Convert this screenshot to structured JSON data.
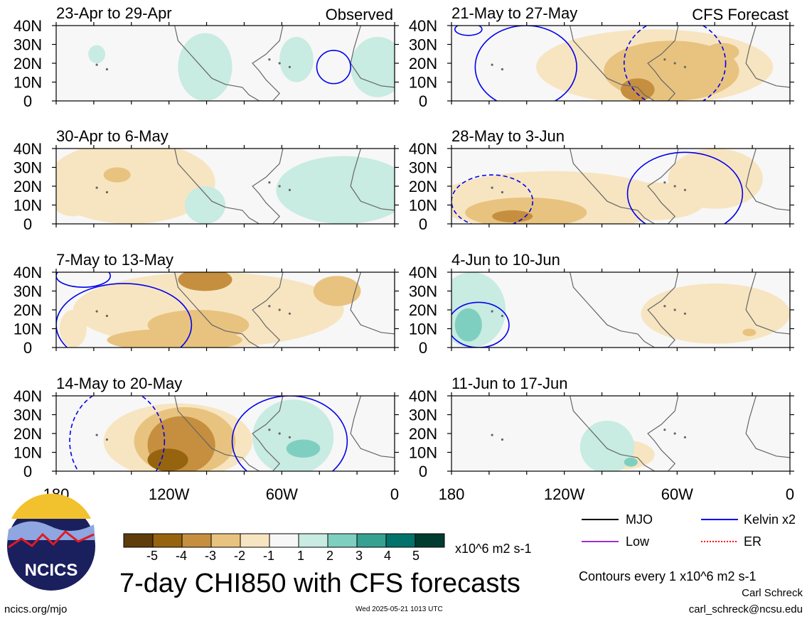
{
  "colors": {
    "dry3": "#96640e",
    "dry2": "#c58f3f",
    "dry1": "#e8c37f",
    "dry0": "#f7e5c1",
    "neutral": "#f7f7f7",
    "wet1": "#c8ebe2",
    "wet2": "#7fcfc0",
    "mjo": "#000000",
    "kelvin": "#0000ee",
    "low": "#9932cc",
    "er": "#ff0000",
    "land": "#666666"
  },
  "map_data": {
    "lon_range": [
      -180,
      0
    ],
    "lat_range": [
      0,
      40
    ],
    "x_ticks": [
      "180",
      "120W",
      "60W",
      "0"
    ],
    "y_ticks": [
      "40N",
      "30N",
      "20N",
      "10N",
      "0"
    ],
    "panels": [
      {
        "id": "p1",
        "col": 0,
        "row": 0,
        "title": "23-Apr to 29-Apr",
        "tag": "Observed"
      },
      {
        "id": "p2",
        "col": 0,
        "row": 1,
        "title": "30-Apr to 6-May",
        "tag": ""
      },
      {
        "id": "p3",
        "col": 0,
        "row": 2,
        "title": "7-May to 13-May",
        "tag": ""
      },
      {
        "id": "p4",
        "col": 0,
        "row": 3,
        "title": "14-May to 20-May",
        "tag": ""
      },
      {
        "id": "p5",
        "col": 1,
        "row": 0,
        "title": "21-May to 27-May",
        "tag": "CFS Forecast"
      },
      {
        "id": "p6",
        "col": 1,
        "row": 1,
        "title": "28-May to 3-Jun",
        "tag": ""
      },
      {
        "id": "p7",
        "col": 1,
        "row": 2,
        "title": "4-Jun to 10-Jun",
        "tag": ""
      },
      {
        "id": "p8",
        "col": 1,
        "row": 3,
        "title": "11-Jun to 17-Jun",
        "tag": ""
      }
    ]
  },
  "colorbar": {
    "labels": [
      "-5",
      "-4",
      "-3",
      "-2",
      "-1",
      "1",
      "2",
      "3",
      "4",
      "5"
    ],
    "colors": [
      "#5e3c0b",
      "#96640e",
      "#c58f3f",
      "#e8c37f",
      "#f7e5c1",
      "#f7f7f7",
      "#c8ebe2",
      "#7fcfc0",
      "#35a191",
      "#01736a",
      "#003c30"
    ],
    "units": "x10^6 m2 s-1"
  },
  "legend": {
    "items": [
      {
        "label": "MJO",
        "color": "#000000",
        "style": "solid"
      },
      {
        "label": "Kelvin x2",
        "color": "#0000ee",
        "style": "solid"
      },
      {
        "label": "Low",
        "color": "#9932cc",
        "style": "solid"
      },
      {
        "label": "ER",
        "color": "#ff0000",
        "style": "dotted"
      }
    ],
    "contours_note": "Contours every 1 x10^6 m2 s-1"
  },
  "logo": {
    "text": "NCICS"
  },
  "main_title": "7-day CHI850 with CFS forecasts",
  "footer": {
    "url": "ncics.org/mjo",
    "timestamp": "Wed 2025-05-21 1013 UTC",
    "author": "Carl Schreck",
    "email": "carl_schreck@ncsu.edu"
  }
}
